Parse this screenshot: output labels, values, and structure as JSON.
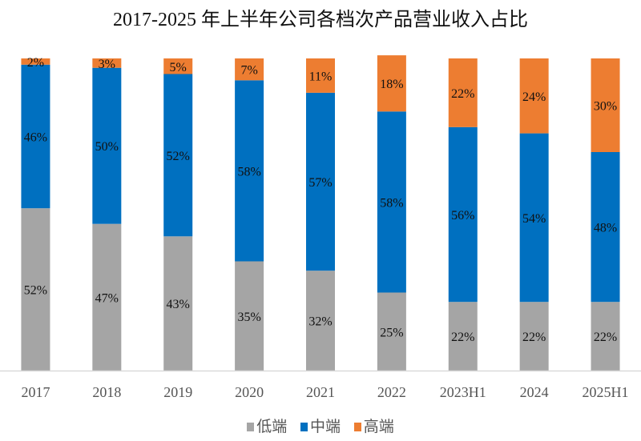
{
  "chart_data": {
    "type": "bar",
    "stacked": true,
    "percent_stacked": true,
    "title": "2017-2025 年上半年公司各档次产品营业收入占比",
    "xlabel": "",
    "ylabel": "",
    "ylim": [
      0,
      100
    ],
    "grid": false,
    "legend_position": "bottom",
    "categories": [
      "2017",
      "2018",
      "2019",
      "2020",
      "2021",
      "2022",
      "2023H1",
      "2024",
      "2025H1"
    ],
    "series": [
      {
        "name": "低端",
        "color": "#A5A5A5",
        "values": [
          52,
          47,
          43,
          35,
          32,
          25,
          22,
          22,
          22
        ]
      },
      {
        "name": "中端",
        "color": "#0070C0",
        "values": [
          46,
          50,
          52,
          58,
          57,
          58,
          56,
          54,
          48
        ]
      },
      {
        "name": "高端",
        "color": "#ED7D31",
        "values": [
          2,
          3,
          5,
          7,
          11,
          18,
          22,
          24,
          30
        ]
      }
    ],
    "data_labels": true,
    "data_label_format": "{v}%"
  }
}
